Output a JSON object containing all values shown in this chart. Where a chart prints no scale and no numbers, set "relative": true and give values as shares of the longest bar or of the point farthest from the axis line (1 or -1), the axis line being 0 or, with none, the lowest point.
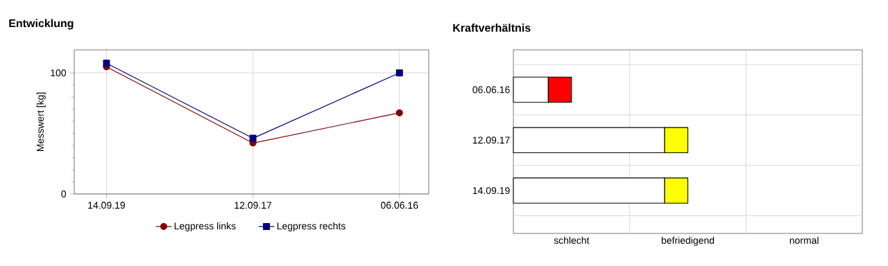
{
  "chart_data": [
    {
      "type": "line",
      "title": "Entwicklung",
      "ylabel": "Messwert [kg]",
      "categories": [
        "14.09.19",
        "12.09.17",
        "06.06.16"
      ],
      "series": [
        {
          "name": "Legpress links",
          "color": "#800000",
          "marker": "circle",
          "values": [
            105,
            42,
            67
          ]
        },
        {
          "name": "Legpress rechts",
          "color": "#000080",
          "marker": "square",
          "values": [
            108,
            46,
            100
          ]
        }
      ],
      "ylim": [
        0,
        119
      ],
      "yticks": [
        0,
        100
      ],
      "grid": true,
      "legend": "bottom"
    },
    {
      "type": "bar",
      "orientation": "horizontal",
      "stacked": true,
      "title": "Kraftverhältnis",
      "categories": [
        "06.06.16",
        "12.09.17",
        "14.09.19"
      ],
      "series": [
        {
          "color": "#ffffff",
          "values": [
            0.2,
            0.867,
            0.867
          ]
        },
        {
          "colors": [
            "#ff0000",
            "#ffff00",
            "#ffff00"
          ],
          "values": [
            0.133,
            0.133,
            0.133
          ]
        }
      ],
      "relative": true,
      "annotations": [
        "schlecht",
        "befriedigend",
        "normal"
      ],
      "grid": true
    }
  ]
}
